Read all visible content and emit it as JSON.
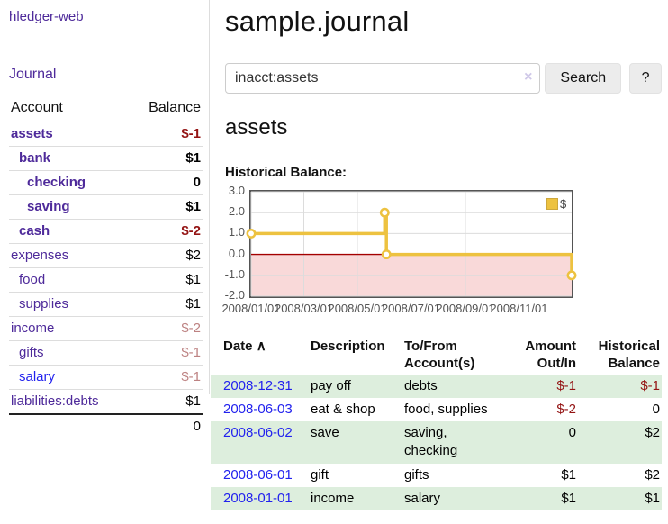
{
  "app": {
    "brand": "hledger-web",
    "nav_journal": "Journal"
  },
  "sidebar": {
    "accounts": {
      "headers": {
        "account": "Account",
        "balance": "Balance"
      },
      "rows": [
        {
          "name": "assets",
          "balance": "$-1",
          "indent": 0,
          "bold": true,
          "link_color": "purple",
          "balance_class": "neg"
        },
        {
          "name": "bank",
          "balance": "$1",
          "indent": 1,
          "bold": true,
          "link_color": "purple",
          "balance_class": ""
        },
        {
          "name": "checking",
          "balance": "0",
          "indent": 2,
          "bold": true,
          "link_color": "purple",
          "balance_class": ""
        },
        {
          "name": "saving",
          "balance": "$1",
          "indent": 2,
          "bold": true,
          "link_color": "purple",
          "balance_class": ""
        },
        {
          "name": "cash",
          "balance": "$-2",
          "indent": 1,
          "bold": true,
          "link_color": "purple",
          "balance_class": "neg"
        },
        {
          "name": "expenses",
          "balance": "$2",
          "indent": 0,
          "bold": false,
          "link_color": "purple",
          "balance_class": ""
        },
        {
          "name": "food",
          "balance": "$1",
          "indent": 1,
          "bold": false,
          "link_color": "purple",
          "balance_class": ""
        },
        {
          "name": "supplies",
          "balance": "$1",
          "indent": 1,
          "bold": false,
          "link_color": "purple",
          "balance_class": ""
        },
        {
          "name": "income",
          "balance": "$-2",
          "indent": 0,
          "bold": false,
          "link_color": "purple",
          "balance_class": "muted"
        },
        {
          "name": "gifts",
          "balance": "$-1",
          "indent": 1,
          "bold": false,
          "link_color": "purple",
          "balance_class": "muted"
        },
        {
          "name": "salary",
          "balance": "$-1",
          "indent": 1,
          "bold": false,
          "link_color": "blue",
          "balance_class": "muted"
        },
        {
          "name": "liabilities:debts",
          "balance": "$1",
          "indent": 0,
          "bold": false,
          "link_color": "purple",
          "balance_class": ""
        }
      ],
      "total": "0"
    }
  },
  "header": {
    "title": "sample.journal"
  },
  "search": {
    "query": "inacct:assets",
    "clear_icon": "×",
    "button": "Search",
    "help_button": "?"
  },
  "account_page": {
    "heading": "assets"
  },
  "chart_data": {
    "type": "line",
    "title": "Historical Balance:",
    "step": true,
    "x_range": [
      "2008-01-01",
      "2008-12-31"
    ],
    "x_tick_labels": [
      "2008/01/01",
      "2008/03/01",
      "2008/05/01",
      "2008/07/01",
      "2008/09/01",
      "2008/11/01"
    ],
    "y_ticks": [
      3.0,
      2.0,
      1.0,
      0.0,
      -1.0,
      -2.0
    ],
    "ylim": [
      -2.0,
      3.0
    ],
    "series": [
      {
        "name": "$",
        "color": "#edc240",
        "points": [
          [
            "2008-01-01",
            1
          ],
          [
            "2008-06-01",
            2
          ],
          [
            "2008-06-03",
            0
          ],
          [
            "2008-12-31",
            -1
          ]
        ]
      }
    ],
    "legend": {
      "label": "$",
      "position": "top-right",
      "swatch_color": "#edc240"
    },
    "grid": true,
    "zero_line_color": "#a40000",
    "negative_region_fill": "#f9d9d9"
  },
  "register": {
    "headers": {
      "date": "Date",
      "sort_icon": "∧",
      "description": "Description",
      "account": "To/From Account(s)",
      "amount": "Amount Out/In",
      "balance": "Historical Balance"
    },
    "rows": [
      {
        "date": "2008-12-31",
        "description": "pay off",
        "account": "debts",
        "amount": "$-1",
        "balance": "$-1",
        "amount_negative": true,
        "balance_negative": true
      },
      {
        "date": "2008-06-03",
        "description": "eat & shop",
        "account": "food, supplies",
        "amount": "$-2",
        "balance": "0",
        "amount_negative": true,
        "balance_negative": false
      },
      {
        "date": "2008-06-02",
        "description": "save",
        "account": "saving, checking",
        "amount": "0",
        "balance": "$2",
        "amount_negative": false,
        "balance_negative": false
      },
      {
        "date": "2008-06-01",
        "description": "gift",
        "account": "gifts",
        "amount": "$1",
        "balance": "$2",
        "amount_negative": false,
        "balance_negative": false
      },
      {
        "date": "2008-01-01",
        "description": "income",
        "account": "salary",
        "amount": "$1",
        "balance": "$1",
        "amount_negative": false,
        "balance_negative": false
      }
    ]
  }
}
